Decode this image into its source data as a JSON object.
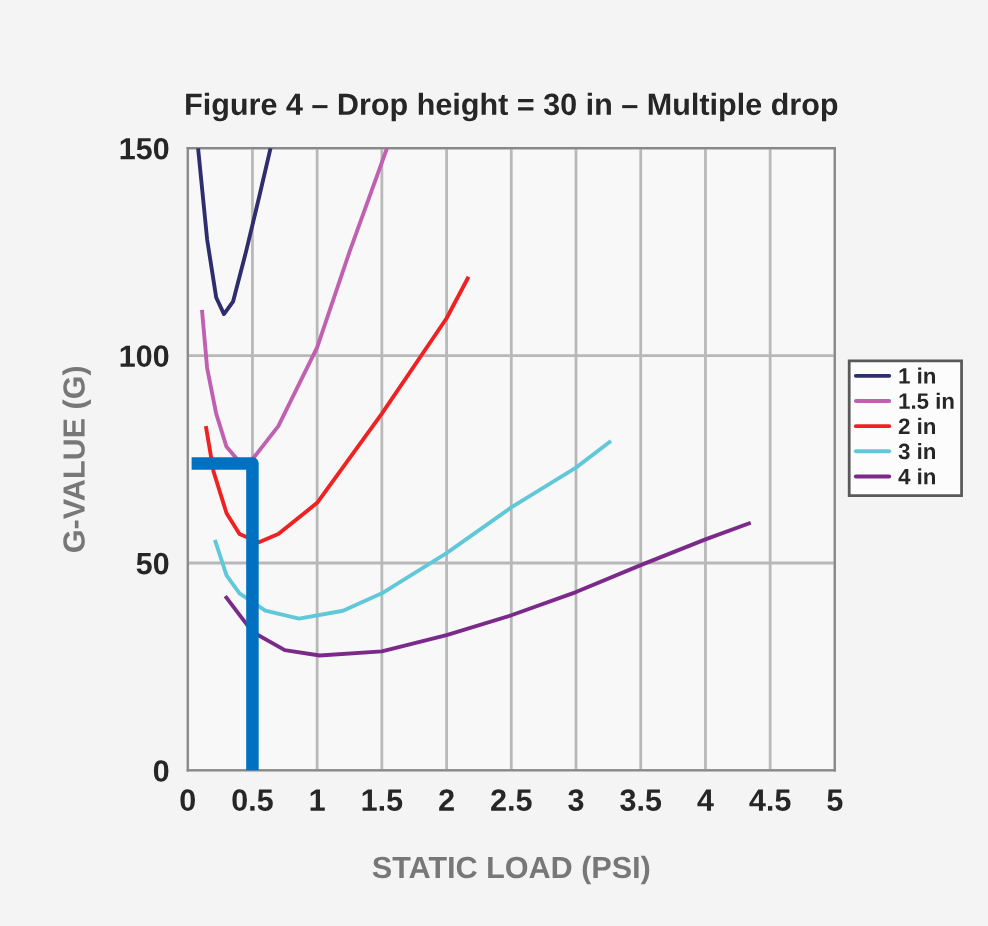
{
  "chart_data": {
    "type": "line",
    "title": "Figure 4 – Drop height = 30 in – Multiple drop",
    "xlabel": "STATIC LOAD (PSI)",
    "ylabel": "G-VALUE (G)",
    "xlim": [
      0,
      5
    ],
    "xticks": [
      0,
      0.5,
      1,
      1.5,
      2,
      2.5,
      3,
      3.5,
      4,
      4.5,
      5
    ],
    "ylim": [
      0,
      150
    ],
    "yticks": [
      0,
      50,
      100,
      150
    ],
    "grid": true,
    "legend": "right",
    "line_style": "solid",
    "marker": "none",
    "series": [
      {
        "name": "1 in",
        "color": "#2e2e6e",
        "x": [
          0.08,
          0.15,
          0.22,
          0.28,
          0.35,
          0.45,
          0.55,
          0.64
        ],
        "values": [
          150,
          128,
          114,
          110,
          113,
          125,
          138,
          150
        ]
      },
      {
        "name": "1.5 in",
        "color": "#c060b0",
        "x": [
          0.11,
          0.15,
          0.22,
          0.3,
          0.41,
          0.5,
          0.7,
          1,
          1.25,
          1.54
        ],
        "values": [
          111,
          97,
          86,
          78,
          74,
          75,
          83,
          102,
          125,
          150
        ]
      },
      {
        "name": "2 in",
        "color": "#ee2222",
        "x": [
          0.14,
          0.2,
          0.3,
          0.4,
          0.55,
          0.7,
          1,
          1.5,
          2,
          2.17
        ],
        "values": [
          83,
          72,
          62,
          57,
          55,
          57,
          64.5,
          86,
          109,
          119
        ]
      },
      {
        "name": "3 in",
        "color": "#60c8d8",
        "x": [
          0.21,
          0.3,
          0.4,
          0.6,
          0.86,
          1.2,
          1.5,
          2,
          2.5,
          3,
          3.27
        ],
        "values": [
          55.6,
          47,
          42.7,
          38.5,
          36.6,
          38.5,
          42.7,
          52.4,
          63.4,
          73,
          79.4
        ]
      },
      {
        "name": "4 in",
        "color": "#7b2a8a",
        "x": [
          0.29,
          0.5,
          0.75,
          1.02,
          1.5,
          2,
          2.5,
          3,
          3.5,
          4,
          4.35
        ],
        "values": [
          42,
          33.4,
          29,
          27.7,
          28.7,
          32.6,
          37.4,
          43,
          49.5,
          55.7,
          59.7
        ]
      },
      {
        "color": "#0070c0",
        "x": [
          0.5,
          0.5,
          0.03
        ],
        "values": [
          0,
          74,
          74
        ]
      }
    ]
  }
}
